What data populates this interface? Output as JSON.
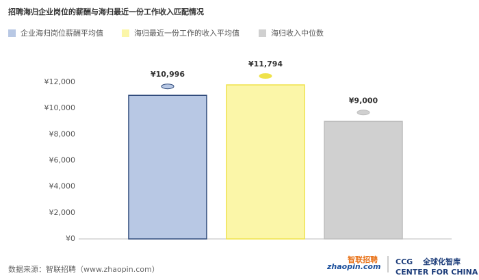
{
  "chart_data": {
    "type": "bar",
    "title": "招聘海归企业岗位的薪酬与海归最近一份工作收入匹配情况",
    "categories": [
      null
    ],
    "series": [
      {
        "name": "企业海归岗位薪酬平均值",
        "color": "#b8c8e4",
        "border_color": "#2f4a7a",
        "values": [
          10996
        ],
        "value_labels": [
          "¥10,996"
        ]
      },
      {
        "name": "海归最近一份工作的收入平均值",
        "color": "#fbf6a8",
        "border_color": "#efe24a",
        "values": [
          11794
        ],
        "value_labels": [
          "¥11,794"
        ]
      },
      {
        "name": "海归收入中位数",
        "color": "#d0d0d0",
        "border_color": "#bdbdbd",
        "values": [
          9000
        ],
        "value_labels": [
          "¥9,000"
        ]
      }
    ],
    "ylim": [
      0,
      13000
    ],
    "yticks": [
      {
        "value": 0,
        "label": "¥0"
      },
      {
        "value": 2000,
        "label": "¥2,000"
      },
      {
        "value": 4000,
        "label": "¥4,000"
      },
      {
        "value": 6000,
        "label": "¥6,000"
      },
      {
        "value": 8000,
        "label": "¥8,000"
      },
      {
        "value": 10000,
        "label": "¥10,000"
      },
      {
        "value": 12000,
        "label": "¥12,000"
      }
    ],
    "grid": false,
    "source": "数据来源：智联招聘（www.zhaopin.com）",
    "logos": [
      "zhaopin.com",
      "智联招聘",
      "CCG",
      "全球化智库",
      "CENTER FOR CHINA & GLOBALIZATION"
    ]
  }
}
